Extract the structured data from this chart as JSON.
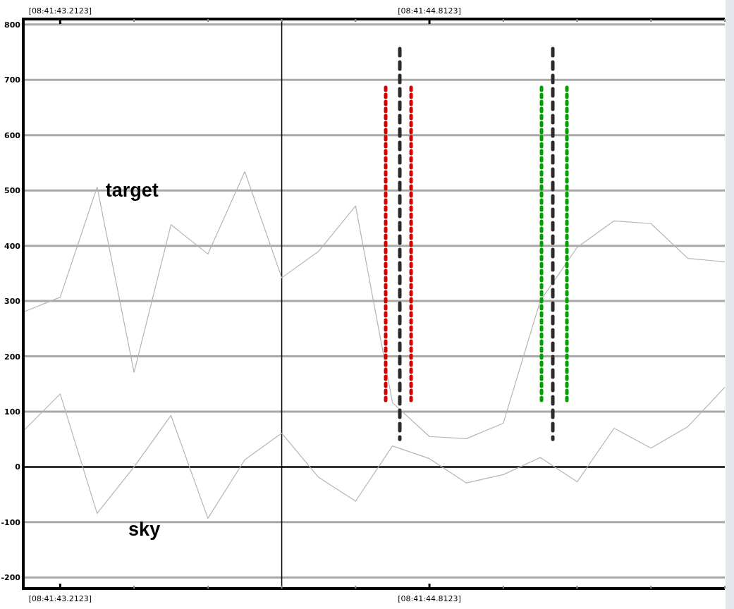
{
  "chart_data": {
    "type": "line",
    "categories": [
      null,
      "[08:41:43.2123]",
      null,
      null,
      null,
      null,
      null,
      null,
      null,
      null,
      null,
      "[08:41:44.8123]",
      null,
      null,
      null,
      null,
      null,
      null,
      null,
      null
    ],
    "series": [
      {
        "name": "target",
        "color": "#b4b4b4",
        "values": [
          280,
          307,
          506,
          171,
          438,
          385,
          534,
          342,
          390,
          472,
          116,
          55,
          51,
          79,
          300,
          397,
          445,
          440,
          377,
          371
        ]
      },
      {
        "name": "sky",
        "color": "#b4b4b4",
        "values": [
          65,
          132,
          -84,
          0,
          93,
          -93,
          13,
          61,
          -19,
          -62,
          38,
          15,
          -29,
          -14,
          17,
          -27,
          70,
          34,
          73,
          144
        ]
      }
    ],
    "ylim": [
      -220,
      810
    ],
    "yticks": [
      -200,
      -100,
      0,
      100,
      200,
      300,
      400,
      500,
      600,
      700,
      800
    ],
    "ref_lines": [
      {
        "axis": "y",
        "value": 0,
        "color": "#333333"
      }
    ],
    "grid": "y",
    "marker": "none",
    "line_style": "solid"
  }
}
